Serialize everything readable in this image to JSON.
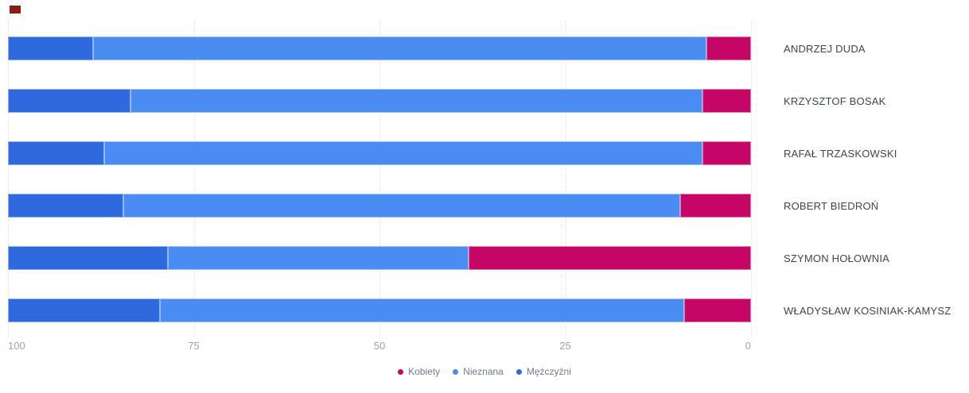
{
  "chart_data": {
    "type": "bar",
    "orientation": "horizontal",
    "stacked": true,
    "grid": "dotted-vertical",
    "legend_position": "bottom",
    "categories": [
      "ANDRZEJ DUDA",
      "KRZYSZTOF BOSAK",
      "RAFAŁ TRZASKOWSKI",
      "ROBERT BIEDROŃ",
      "SZYMON HOŁOWNIA",
      "WŁADYSŁAW KOSINIAK-KAMYSZ"
    ],
    "series": [
      {
        "name": "Mężczyźni",
        "key": "mezczyzni",
        "color": "#2f69de",
        "values": [
          11.5,
          16.5,
          13,
          15.5,
          21.5,
          20.5
        ]
      },
      {
        "name": "Nieznana",
        "key": "nieznana",
        "color": "#4a8cf2",
        "values": [
          82.5,
          77,
          80.5,
          75,
          40.5,
          70.5
        ]
      },
      {
        "name": "Kobiety",
        "key": "kobiety",
        "color": "#c60667",
        "values": [
          6,
          6.5,
          6.5,
          9.5,
          38,
          9
        ]
      }
    ],
    "legend": [
      {
        "label": "Kobiety",
        "key": "kobiety",
        "color": "#c60667"
      },
      {
        "label": "Nieznana",
        "key": "nieznana",
        "color": "#4a8cf2"
      },
      {
        "label": "Mężczyźni",
        "key": "mezczyzni",
        "color": "#2f69de"
      }
    ],
    "x_axis": {
      "reversed": true,
      "min": 0,
      "max": 100,
      "ticks": [
        100,
        75,
        50,
        25,
        0
      ]
    }
  },
  "ui": {
    "corner_mark_color": "#8b1e13",
    "gridline_color": "#dcdfe8"
  }
}
